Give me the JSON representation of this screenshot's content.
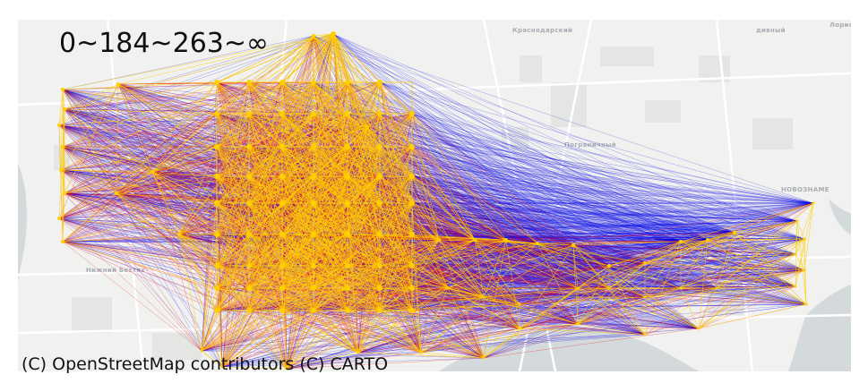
{
  "legend_label": "0~184~263~∞",
  "attribution": "(C) OpenStreetMap contributors (C) CARTO",
  "place_labels": [
    "Краснодарский",
    "дивный",
    "Лорис",
    "Пограничный",
    "НОВОЗНАМЕ",
    "Нижний Бестях"
  ],
  "map_style": {
    "basemap": "CARTO Positron (light)",
    "background": "#f1f1ef",
    "water": "#d4dadc",
    "roads": "#ffffff",
    "blocks": "#e4e6e4"
  },
  "edge_colors": {
    "low": "#0000e8",
    "mid": "#e8001a",
    "high": "#ffd000"
  },
  "network": {
    "type": "all-pairs flow lines between stop nodes",
    "color_bins": [
      "0",
      "184",
      "263",
      "∞"
    ]
  }
}
